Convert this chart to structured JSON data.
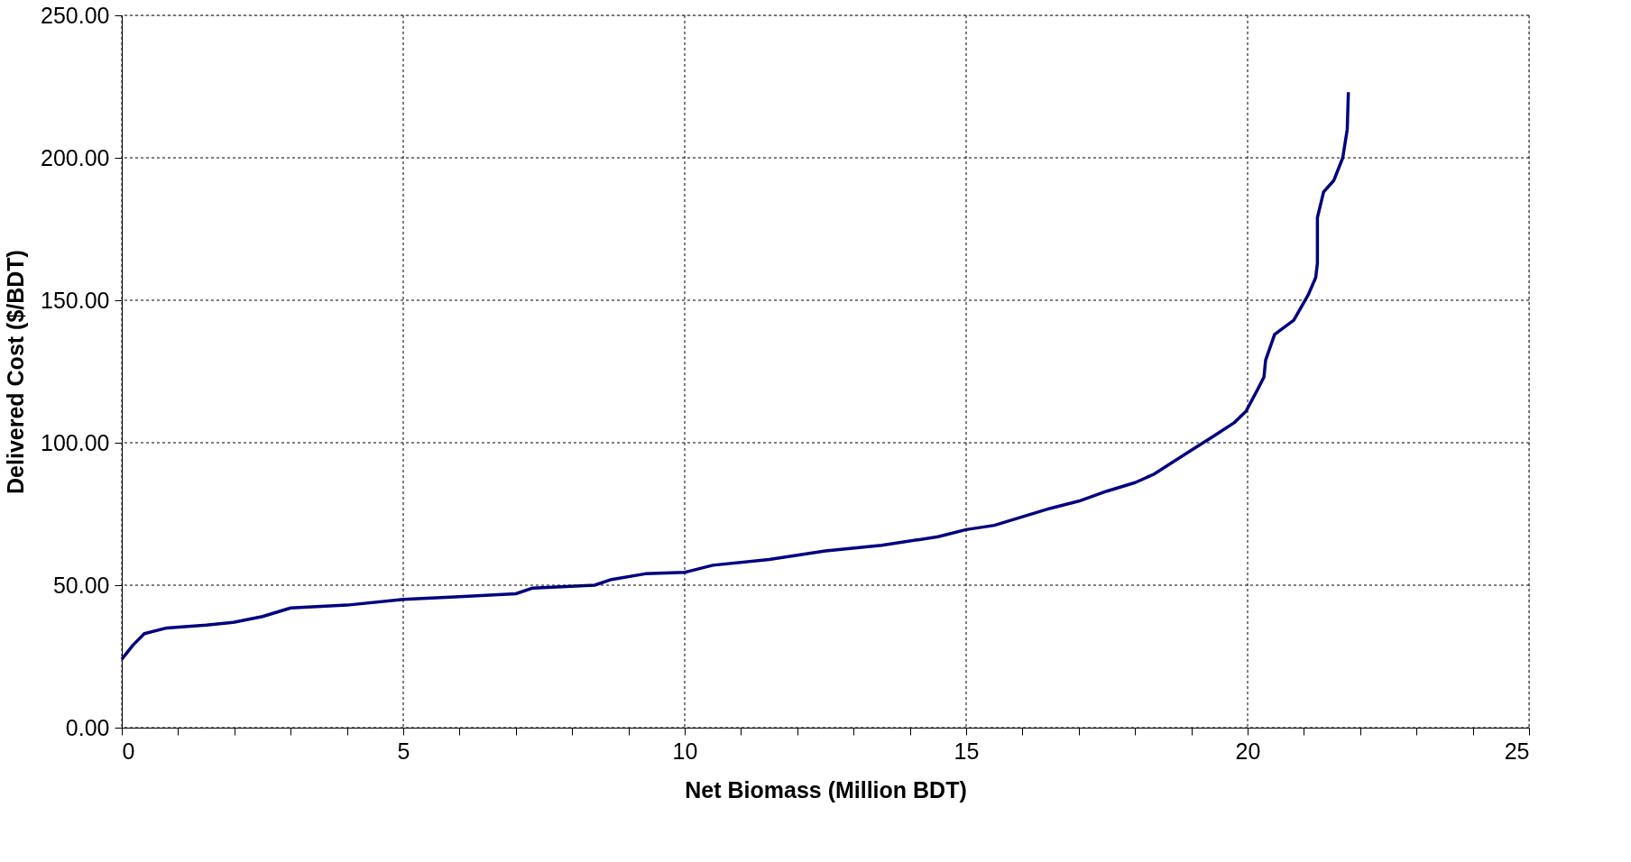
{
  "chart_data": {
    "type": "line",
    "xlabel": "Net Biomass (Million BDT)",
    "ylabel": "Delivered Cost ($/BDT)",
    "x": [
      0,
      0.2,
      0.4,
      0.8,
      1.5,
      2,
      2.5,
      3,
      4,
      5,
      6,
      7,
      7.3,
      8.4,
      8.7,
      9.3,
      10,
      10.5,
      11.5,
      12.5,
      13.5,
      14.5,
      15,
      15.5,
      16,
      16.5,
      17,
      17.5,
      18,
      18.34,
      18.97,
      19.37,
      19.76,
      19.97,
      20.16,
      20.29,
      20.32,
      20.48,
      20.82,
      21.08,
      21.21,
      21.24,
      21.24,
      21.35,
      21.53,
      21.69,
      21.77,
      21.79
    ],
    "series": [
      {
        "color": "#000080",
        "values": [
          24,
          29,
          33,
          35,
          36,
          37,
          39,
          42,
          43,
          45,
          46,
          47,
          49,
          50,
          52,
          54,
          54.5,
          57,
          59,
          62,
          64,
          67,
          69.5,
          71,
          74,
          77,
          79.5,
          83,
          86,
          89,
          97,
          102,
          107,
          111,
          118,
          123,
          129,
          138,
          143,
          152,
          158,
          163,
          179,
          188,
          192,
          200,
          210,
          223
        ]
      }
    ],
    "xlim": [
      0,
      25
    ],
    "xticks": [
      0,
      {
        "value": 1,
        "label": null
      },
      {
        "value": 2,
        "label": null
      },
      {
        "value": 3,
        "label": null
      },
      {
        "value": 4,
        "label": null
      },
      5,
      {
        "value": 6,
        "label": null
      },
      {
        "value": 7,
        "label": null
      },
      {
        "value": 8,
        "label": null
      },
      {
        "value": 9,
        "label": null
      },
      10,
      {
        "value": 11,
        "label": null
      },
      {
        "value": 12,
        "label": null
      },
      {
        "value": 13,
        "label": null
      },
      {
        "value": 14,
        "label": null
      },
      15,
      {
        "value": 16,
        "label": null
      },
      {
        "value": 17,
        "label": null
      },
      {
        "value": 18,
        "label": null
      },
      {
        "value": 19,
        "label": null
      },
      20,
      {
        "value": 21,
        "label": null
      },
      {
        "value": 22,
        "label": null
      },
      {
        "value": 23,
        "label": null
      },
      {
        "value": 24,
        "label": null
      },
      25
    ],
    "ylim": [
      0,
      250
    ],
    "yticks": [
      {
        "value": 0,
        "label": "0.00"
      },
      {
        "value": 50,
        "label": "50.00"
      },
      {
        "value": 100,
        "label": "100.00"
      },
      {
        "value": 150,
        "label": "150.00"
      },
      {
        "value": 200,
        "label": "200.00"
      },
      {
        "value": 250,
        "label": "250.00"
      }
    ],
    "grid": true,
    "marker": "none",
    "line_style": "solid"
  }
}
